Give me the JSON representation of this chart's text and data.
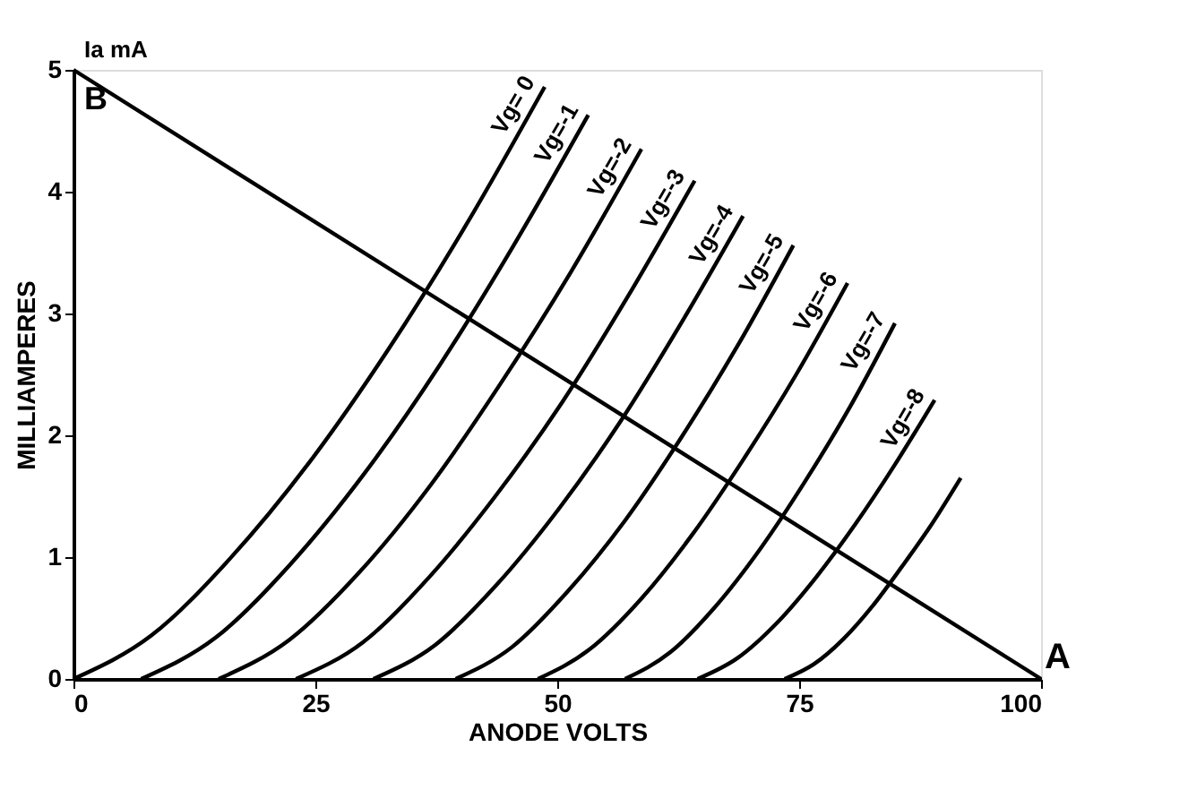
{
  "chart_data": {
    "type": "line",
    "xlabel": "ANODE VOLTS",
    "ylabel": "MILLIAMPERES",
    "xlim": [
      0,
      100
    ],
    "ylim": [
      0,
      5
    ],
    "xticks": [
      0,
      25,
      50,
      75,
      100
    ],
    "yticks": [
      0,
      1,
      2,
      3,
      4,
      5
    ],
    "grid": false,
    "marker": "none",
    "line_style": "solid",
    "annotations": [
      "Ia mA",
      "B",
      "A"
    ],
    "series": [
      {
        "name": "Vg= 0",
        "color": "#000000",
        "x": [
          0,
          8.1,
          16.2,
          24.4,
          32.5,
          40.6,
          48.7
        ],
        "values": [
          0,
          0.36,
          0.99,
          1.78,
          2.7,
          3.73,
          4.86
        ]
      },
      {
        "name": "Vg=-1",
        "color": "#000000",
        "x": [
          7,
          14.7,
          22.4,
          30.1,
          37.8,
          45.5,
          53.2
        ],
        "values": [
          0,
          0.34,
          0.94,
          1.69,
          2.57,
          3.56,
          4.63
        ]
      },
      {
        "name": "Vg=-2",
        "color": "#000000",
        "x": [
          15,
          22.3,
          29.6,
          36.9,
          44.1,
          51.4,
          58.7
        ],
        "values": [
          0,
          0.32,
          0.88,
          1.59,
          2.42,
          3.34,
          4.35
        ]
      },
      {
        "name": "Vg=-3",
        "color": "#000000",
        "x": [
          23,
          29.9,
          36.7,
          43.6,
          50.5,
          57.3,
          64.2
        ],
        "values": [
          0,
          0.3,
          0.83,
          1.5,
          2.27,
          3.14,
          4.09
        ]
      },
      {
        "name": "Vg=-4",
        "color": "#000000",
        "x": [
          31,
          37.4,
          43.7,
          50.1,
          56.5,
          62.8,
          69.2
        ],
        "values": [
          0,
          0.28,
          0.77,
          1.39,
          2.11,
          2.92,
          3.8
        ]
      },
      {
        "name": "Vg=-5",
        "color": "#000000",
        "x": [
          39.5,
          45.3,
          51.1,
          57,
          62.8,
          68.6,
          74.4
        ],
        "values": [
          0,
          0.26,
          0.72,
          1.3,
          1.98,
          2.73,
          3.56
        ]
      },
      {
        "name": "Vg=-6",
        "color": "#000000",
        "x": [
          48,
          53.3,
          58.7,
          64,
          69.3,
          74.7,
          80
        ],
        "values": [
          0,
          0.24,
          0.66,
          1.19,
          1.81,
          2.5,
          3.25
        ]
      },
      {
        "name": "Vg=-7",
        "color": "#000000",
        "x": [
          57,
          61.7,
          66.3,
          71,
          75.6,
          80.3,
          84.9
        ],
        "values": [
          0,
          0.22,
          0.59,
          1.07,
          1.62,
          2.24,
          2.92
        ]
      },
      {
        "name": "Vg=-8",
        "color": "#000000",
        "x": [
          64.5,
          68.6,
          72.7,
          76.8,
          80.8,
          84.9,
          89
        ],
        "values": [
          0,
          0.17,
          0.46,
          0.84,
          1.27,
          1.76,
          2.29
        ]
      },
      {
        "color": "#000000",
        "x": [
          73.5,
          76.5,
          79.6,
          82.6,
          85.6,
          88.7,
          91.7
        ],
        "values": [
          0,
          0.12,
          0.33,
          0.6,
          0.92,
          1.27,
          1.65
        ]
      },
      {
        "type": "line",
        "color": "#000000",
        "x": [
          0,
          100
        ],
        "values": [
          5,
          0
        ]
      }
    ]
  }
}
